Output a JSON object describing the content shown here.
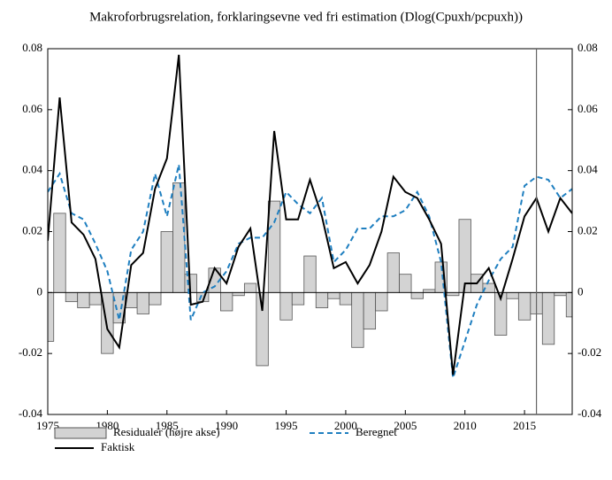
{
  "chart_data": {
    "type": "line",
    "title": "Makroforbrugsrelation, forklaringsevne ved fri estimation (Dlog(Cpuxh/pcpuxh))",
    "x": [
      1975,
      1976,
      1977,
      1978,
      1979,
      1980,
      1981,
      1982,
      1983,
      1984,
      1985,
      1986,
      1987,
      1988,
      1989,
      1990,
      1991,
      1992,
      1993,
      1994,
      1995,
      1996,
      1997,
      1998,
      1999,
      2000,
      2001,
      2002,
      2003,
      2004,
      2005,
      2006,
      2007,
      2008,
      2009,
      2010,
      2011,
      2012,
      2013,
      2014,
      2015,
      2016,
      2017,
      2018,
      2019
    ],
    "series": [
      {
        "name": "Residualer (højre akse)",
        "type": "bar",
        "axis": "y2",
        "color": "#d3d3d3",
        "values": [
          -0.016,
          0.026,
          -0.003,
          -0.005,
          -0.004,
          -0.02,
          -0.01,
          -0.005,
          -0.007,
          -0.004,
          0.02,
          0.036,
          0.006,
          -0.003,
          0.008,
          -0.006,
          -0.001,
          0.003,
          -0.024,
          0.03,
          -0.009,
          -0.004,
          0.012,
          -0.005,
          -0.002,
          -0.004,
          -0.018,
          -0.012,
          -0.006,
          0.013,
          0.006,
          -0.002,
          0.001,
          0.01,
          -0.001,
          0.024,
          0.006,
          0.003,
          -0.014,
          -0.002,
          -0.009,
          -0.007,
          -0.017,
          -0.001,
          -0.008
        ]
      },
      {
        "name": "Beregnet",
        "type": "line",
        "dashed": true,
        "color": "#1f7fc0",
        "values": [
          0.033,
          0.039,
          0.026,
          0.024,
          0.016,
          0.007,
          -0.009,
          0.014,
          0.02,
          0.039,
          0.025,
          0.042,
          -0.009,
          0.0,
          0.002,
          0.007,
          0.016,
          0.018,
          0.018,
          0.023,
          0.033,
          0.029,
          0.026,
          0.031,
          0.01,
          0.014,
          0.021,
          0.021,
          0.025,
          0.025,
          0.027,
          0.033,
          0.025,
          0.01,
          -0.028,
          -0.016,
          -0.004,
          0.004,
          0.011,
          0.015,
          0.035,
          0.038,
          0.037,
          0.031,
          0.034
        ]
      },
      {
        "name": "Faktisk",
        "type": "line",
        "dashed": false,
        "color": "#000000",
        "values": [
          0.017,
          0.064,
          0.023,
          0.019,
          0.011,
          -0.012,
          -0.018,
          0.009,
          0.013,
          0.034,
          0.044,
          0.078,
          -0.004,
          -0.003,
          0.008,
          0.003,
          0.015,
          0.021,
          -0.006,
          0.053,
          0.024,
          0.024,
          0.037,
          0.025,
          0.008,
          0.01,
          0.003,
          0.009,
          0.02,
          0.038,
          0.033,
          0.031,
          0.024,
          0.016,
          -0.027,
          0.003,
          0.003,
          0.008,
          -0.002,
          0.011,
          0.025,
          0.031,
          0.02,
          0.031,
          0.026
        ]
      }
    ],
    "xlim": [
      1975,
      2019
    ],
    "xticks": [
      1975,
      1980,
      1985,
      1990,
      1995,
      2000,
      2005,
      2010,
      2015
    ],
    "ylim": [
      -0.04,
      0.08
    ],
    "yticks": [
      -0.04,
      -0.02,
      0,
      0.02,
      0.04,
      0.06,
      0.08
    ],
    "y2lim": [
      -0.04,
      0.08
    ],
    "y2ticks": [
      -0.04,
      -0.02,
      0,
      0.02,
      0.04,
      0.06,
      0.08
    ],
    "vline": 2016,
    "grid": false
  }
}
